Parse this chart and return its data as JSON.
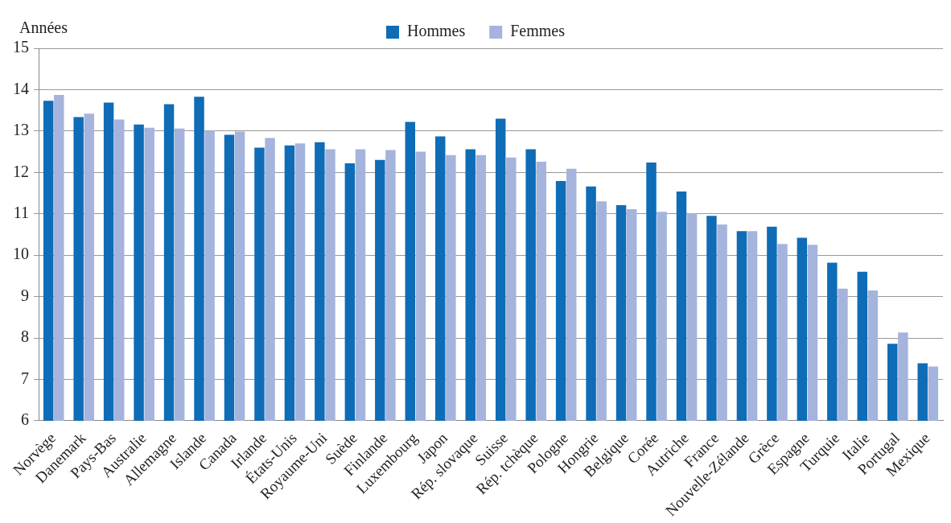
{
  "chart_data": {
    "type": "bar",
    "ylabel": "Années",
    "categories": [
      "Norvège",
      "Danemark",
      "Pays-Bas",
      "Australie",
      "Allemagne",
      "Islande",
      "Canada",
      "Irlande",
      "États-Unis",
      "Royaume-Uni",
      "Suède",
      "Finlande",
      "Luxembourg",
      "Japon",
      "Rép. slovaque",
      "Suisse",
      "Rép. tchèque",
      "Pologne",
      "Hongrie",
      "Belgique",
      "Corée",
      "Autriche",
      "France",
      "Nouvelle-Zélande",
      "Grèce",
      "Espagne",
      "Turquie",
      "Italie",
      "Portugal",
      "Mexique"
    ],
    "series": [
      {
        "name": "Hommes",
        "color": "#0f6cb6",
        "values": [
          13.73,
          13.34,
          13.69,
          13.16,
          13.65,
          13.83,
          12.91,
          12.6,
          12.65,
          12.73,
          12.22,
          12.3,
          13.22,
          12.87,
          12.56,
          13.3,
          12.56,
          11.79,
          11.66,
          11.21,
          12.24,
          11.54,
          10.95,
          10.58,
          10.69,
          10.42,
          9.82,
          9.6,
          7.86,
          7.39
        ]
      },
      {
        "name": "Femmes",
        "color": "#a5b4dc",
        "values": [
          13.87,
          13.42,
          13.28,
          13.08,
          13.06,
          13.01,
          12.99,
          12.83,
          12.7,
          12.56,
          12.56,
          12.54,
          12.5,
          12.42,
          12.42,
          12.36,
          12.26,
          12.09,
          11.3,
          11.11,
          11.05,
          11.01,
          10.74,
          10.58,
          10.27,
          10.25,
          9.19,
          9.15,
          8.13,
          7.31
        ]
      }
    ],
    "ylim": [
      6,
      15
    ],
    "yticks": [
      6,
      7,
      8,
      9,
      10,
      11,
      12,
      13,
      14,
      15
    ],
    "grid": "y",
    "legend": "top"
  }
}
